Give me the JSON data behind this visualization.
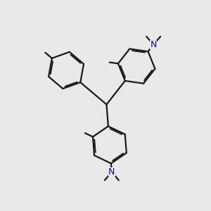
{
  "bg_color": "#e9e9e9",
  "bond_color": "#1a1a1a",
  "n_color": "#0000cc",
  "lw": 1.6,
  "figsize": [
    3.0,
    3.0
  ],
  "dpi": 100,
  "xlim": [
    0,
    10
  ],
  "ylim": [
    0,
    10
  ],
  "R": 0.9
}
